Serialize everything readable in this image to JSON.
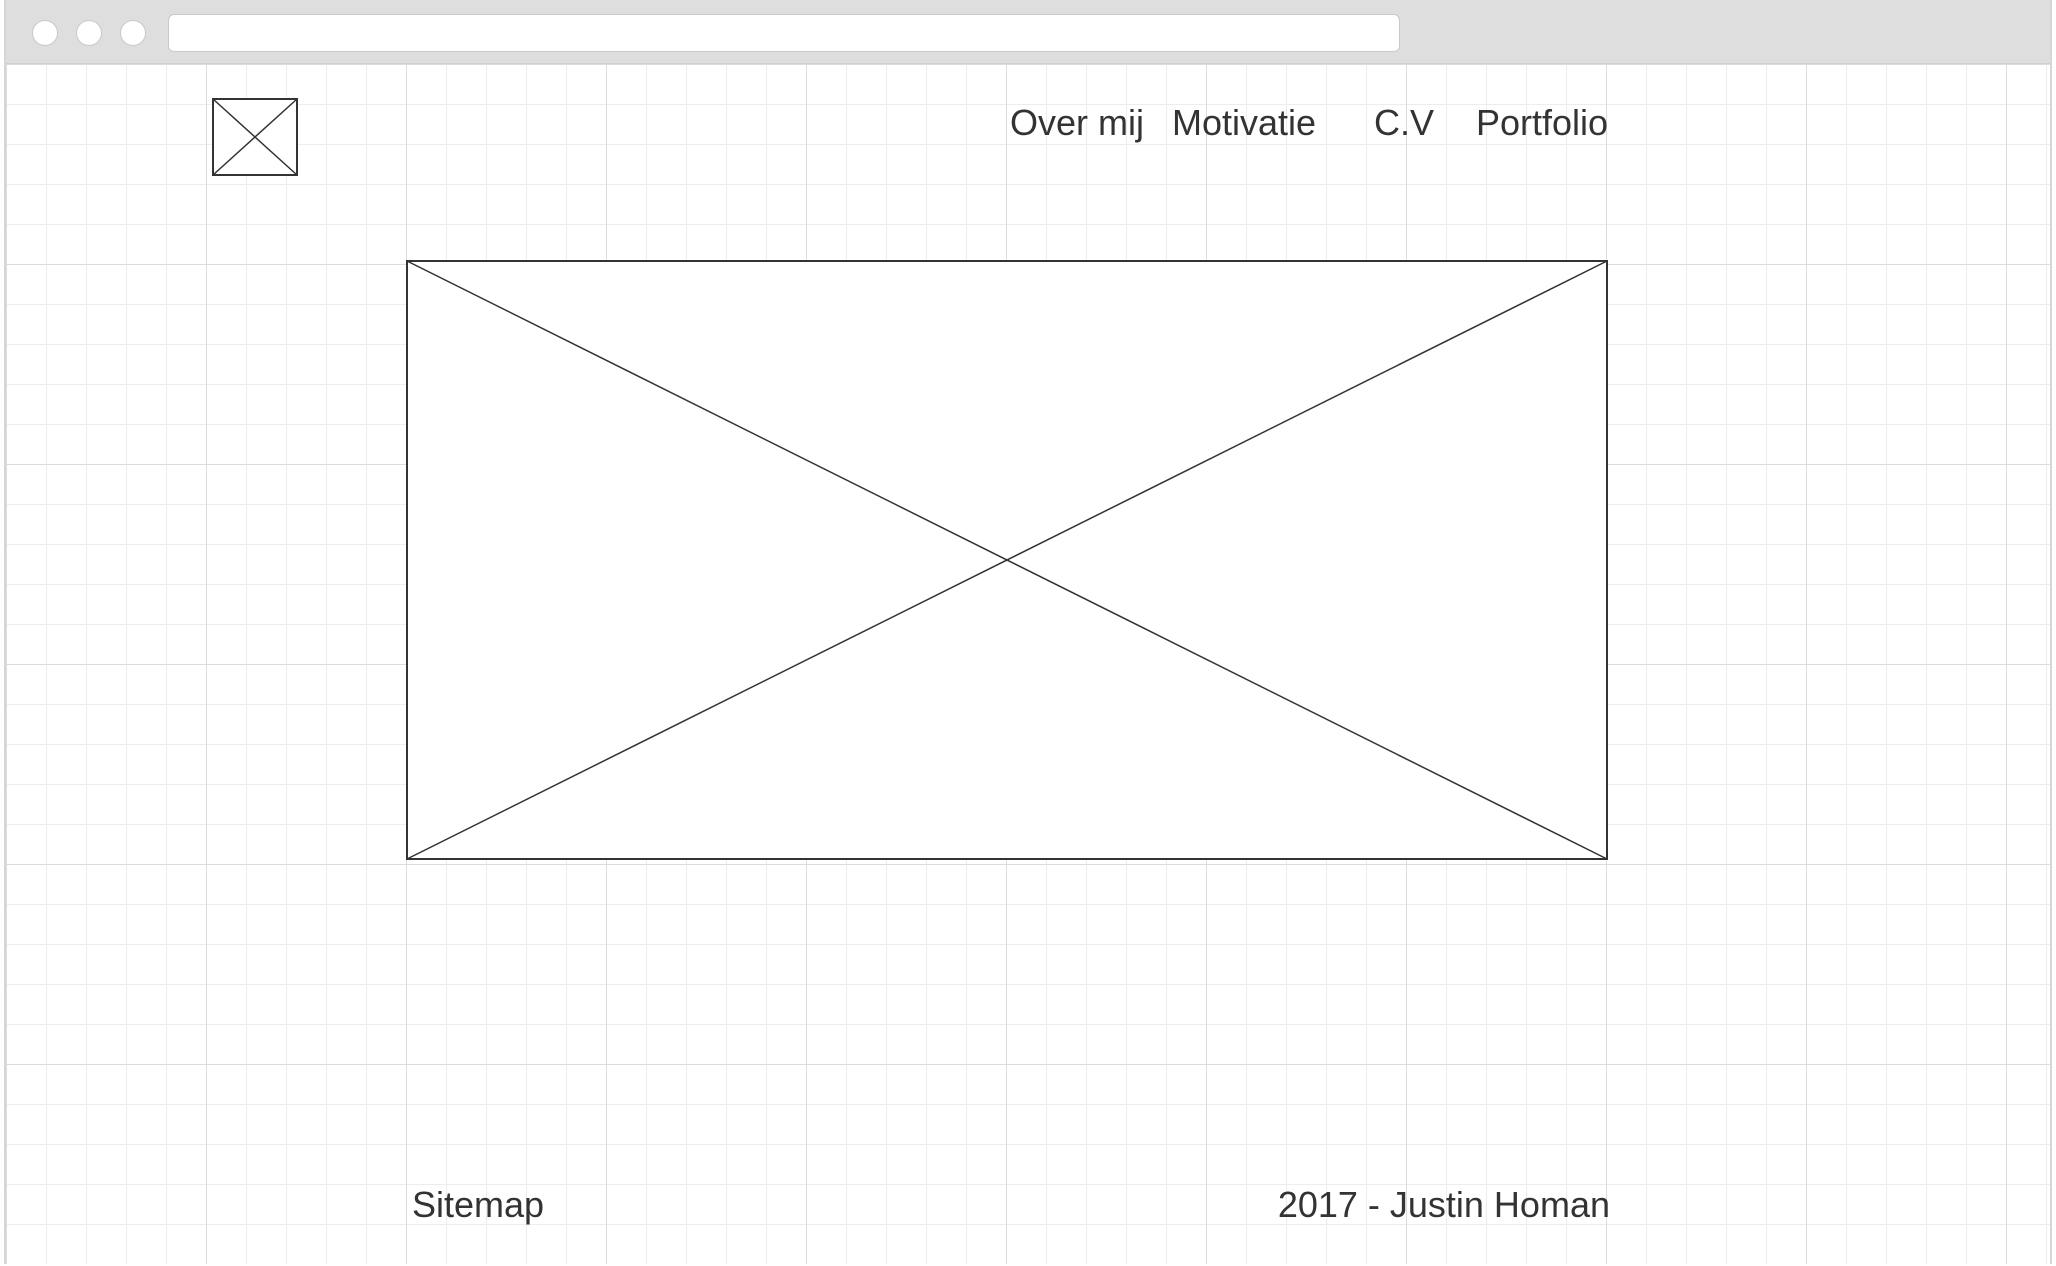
{
  "browser": {
    "url": ""
  },
  "nav": {
    "items": [
      {
        "label": "Over mij"
      },
      {
        "label": "Motivatie"
      },
      {
        "label": "C.V"
      },
      {
        "label": "Portfolio"
      }
    ]
  },
  "footer": {
    "sitemap": "Sitemap",
    "copyright": "2017 - Justin Homan"
  },
  "colors": {
    "chrome": "#dedede",
    "grid_major": "#dcdcdc",
    "grid_minor": "#ededed",
    "text": "#333333",
    "stroke": "#333333"
  }
}
